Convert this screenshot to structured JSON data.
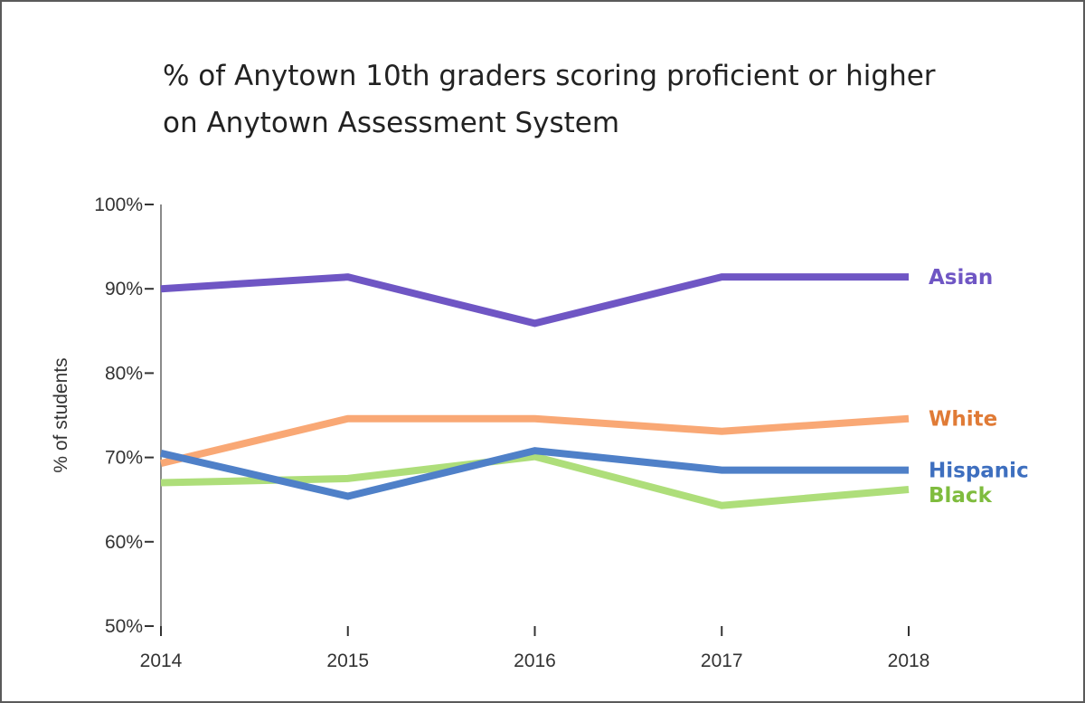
{
  "chart_data": {
    "type": "line",
    "title": "% of Anytown 10th graders scoring proficient or higher on Anytown Assessment System",
    "xlabel": "",
    "ylabel": "% of students",
    "x": [
      "2014",
      "2015",
      "2016",
      "2017",
      "2018"
    ],
    "ylim": [
      50,
      100
    ],
    "yticks": [
      "50%",
      "60%",
      "70%",
      "80%",
      "90%",
      "100%"
    ],
    "ytick_values": [
      50,
      60,
      70,
      80,
      90,
      100
    ],
    "grid": false,
    "legend": "direct labels at line ends",
    "series": [
      {
        "name": "Asian",
        "color": "#6f56c4",
        "values": [
          90.0,
          91.4,
          85.9,
          91.4,
          91.4
        ]
      },
      {
        "name": "White",
        "color": "#f9a875",
        "label_color": "#e07b36",
        "values": [
          69.3,
          74.6,
          74.6,
          73.1,
          74.6
        ]
      },
      {
        "name": "Hispanic",
        "color": "#4f80c8",
        "label_color": "#3e6fbf",
        "values": [
          70.5,
          65.4,
          70.8,
          68.5,
          68.5
        ]
      },
      {
        "name": "Black",
        "color": "#aede7a",
        "label_color": "#7fbc3e",
        "values": [
          67.0,
          67.5,
          70.1,
          64.3,
          66.2
        ]
      }
    ]
  }
}
